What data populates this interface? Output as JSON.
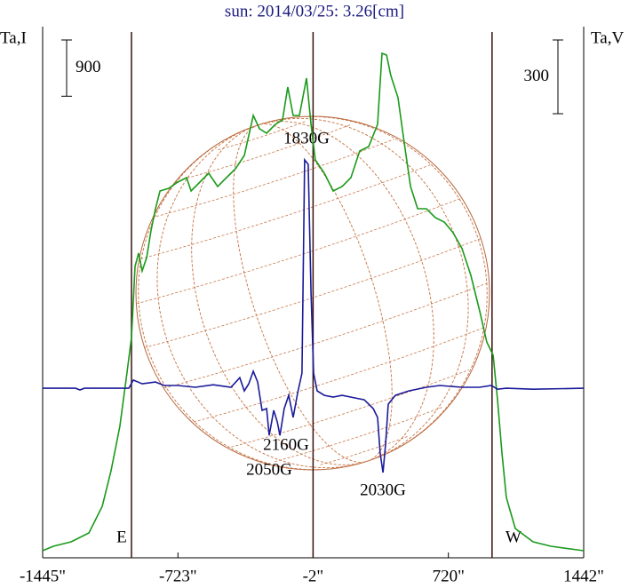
{
  "chart_data": {
    "type": "line",
    "title": "sun: 2014/03/25: 3.26[cm]",
    "y_label": "Ta,I",
    "y2_label": "Ta,V",
    "xlim": [
      -1445,
      1442
    ],
    "xticks": [
      {
        "value": -1445,
        "label": "-1445\""
      },
      {
        "value": -723,
        "label": "-723\""
      },
      {
        "value": -2,
        "label": "-2\""
      },
      {
        "value": 720,
        "label": "720\""
      },
      {
        "value": 1442,
        "label": "1442\""
      }
    ],
    "ylim": [
      0,
      8500
    ],
    "y2lim": [
      -690,
      1471
    ],
    "scale_bars": [
      {
        "value": 900,
        "axis": "y"
      },
      {
        "value": 300,
        "axis": "y2"
      }
    ],
    "markers": [
      {
        "x": -971,
        "label": "E"
      },
      {
        "x": -2
      },
      {
        "x": 953,
        "label": "W"
      }
    ],
    "annotations": [
      "1830G",
      "2160G",
      "2050G",
      "2030G"
    ],
    "series": [
      {
        "color": "#1a9a1a",
        "x": [
          -1445,
          -1388,
          -1293,
          -1198,
          -1127,
          -1080,
          -1033,
          -995,
          -971,
          -952,
          -933,
          -914,
          -890,
          -867,
          -843,
          -819,
          -772,
          -724,
          -677,
          -653,
          -606,
          -559,
          -511,
          -464,
          -416,
          -369,
          -321,
          -288,
          -250,
          -203,
          -165,
          -137,
          -108,
          -75,
          -37,
          -13,
          10,
          58,
          105,
          153,
          200,
          247,
          295,
          342,
          366,
          390,
          413,
          451,
          484,
          518,
          556,
          603,
          650,
          698,
          745,
          793,
          840,
          887,
          925,
          959,
          982,
          1006,
          1029,
          1077,
          1172,
          1267,
          1442
        ],
        "values": [
          114,
          185,
          256,
          398,
          824,
          1393,
          2104,
          2957,
          3525,
          4662,
          4875,
          4591,
          4804,
          5231,
          5586,
          5870,
          5913,
          6013,
          6084,
          5870,
          6013,
          6155,
          5941,
          6084,
          6226,
          6439,
          7079,
          6865,
          6794,
          6936,
          7008,
          7533,
          7079,
          7079,
          7676,
          6936,
          6368,
          6155,
          5870,
          5941,
          6084,
          6510,
          6581,
          6936,
          8074,
          8045,
          7718,
          7363,
          6652,
          5941,
          5586,
          5586,
          5444,
          5373,
          5202,
          4946,
          4520,
          3951,
          3454,
          3241,
          2530,
          1677,
          966,
          469,
          256,
          185,
          114
        ]
      },
      {
        "color": "#1a1a9a",
        "axis": "y2",
        "x": [
          -1445,
          -1270,
          -1246,
          -1222,
          -985,
          -961,
          -914,
          -843,
          -796,
          -724,
          -630,
          -535,
          -440,
          -393,
          -369,
          -345,
          -321,
          -298,
          -274,
          -250,
          -236,
          -212,
          -193,
          -179,
          -156,
          -132,
          -108,
          -84,
          -61,
          -47,
          -28,
          -13,
          1,
          20,
          58,
          105,
          153,
          224,
          271,
          319,
          342,
          356,
          371,
          385,
          399,
          437,
          508,
          603,
          674,
          793,
          887,
          949,
          982,
          1029,
          1172,
          1442
        ],
        "values": [
          0,
          0,
          -7,
          0,
          0,
          33,
          18,
          25,
          11,
          11,
          4,
          14,
          4,
          43,
          -11,
          18,
          69,
          25,
          -90,
          -83,
          -192,
          -90,
          -137,
          -192,
          -83,
          -29,
          -119,
          -18,
          61,
          929,
          911,
          387,
          61,
          -11,
          -29,
          -36,
          -29,
          -40,
          -47,
          -83,
          -119,
          -264,
          -343,
          -228,
          -65,
          -29,
          -11,
          4,
          11,
          4,
          4,
          11,
          -4,
          0,
          -4,
          0
        ]
      }
    ]
  }
}
